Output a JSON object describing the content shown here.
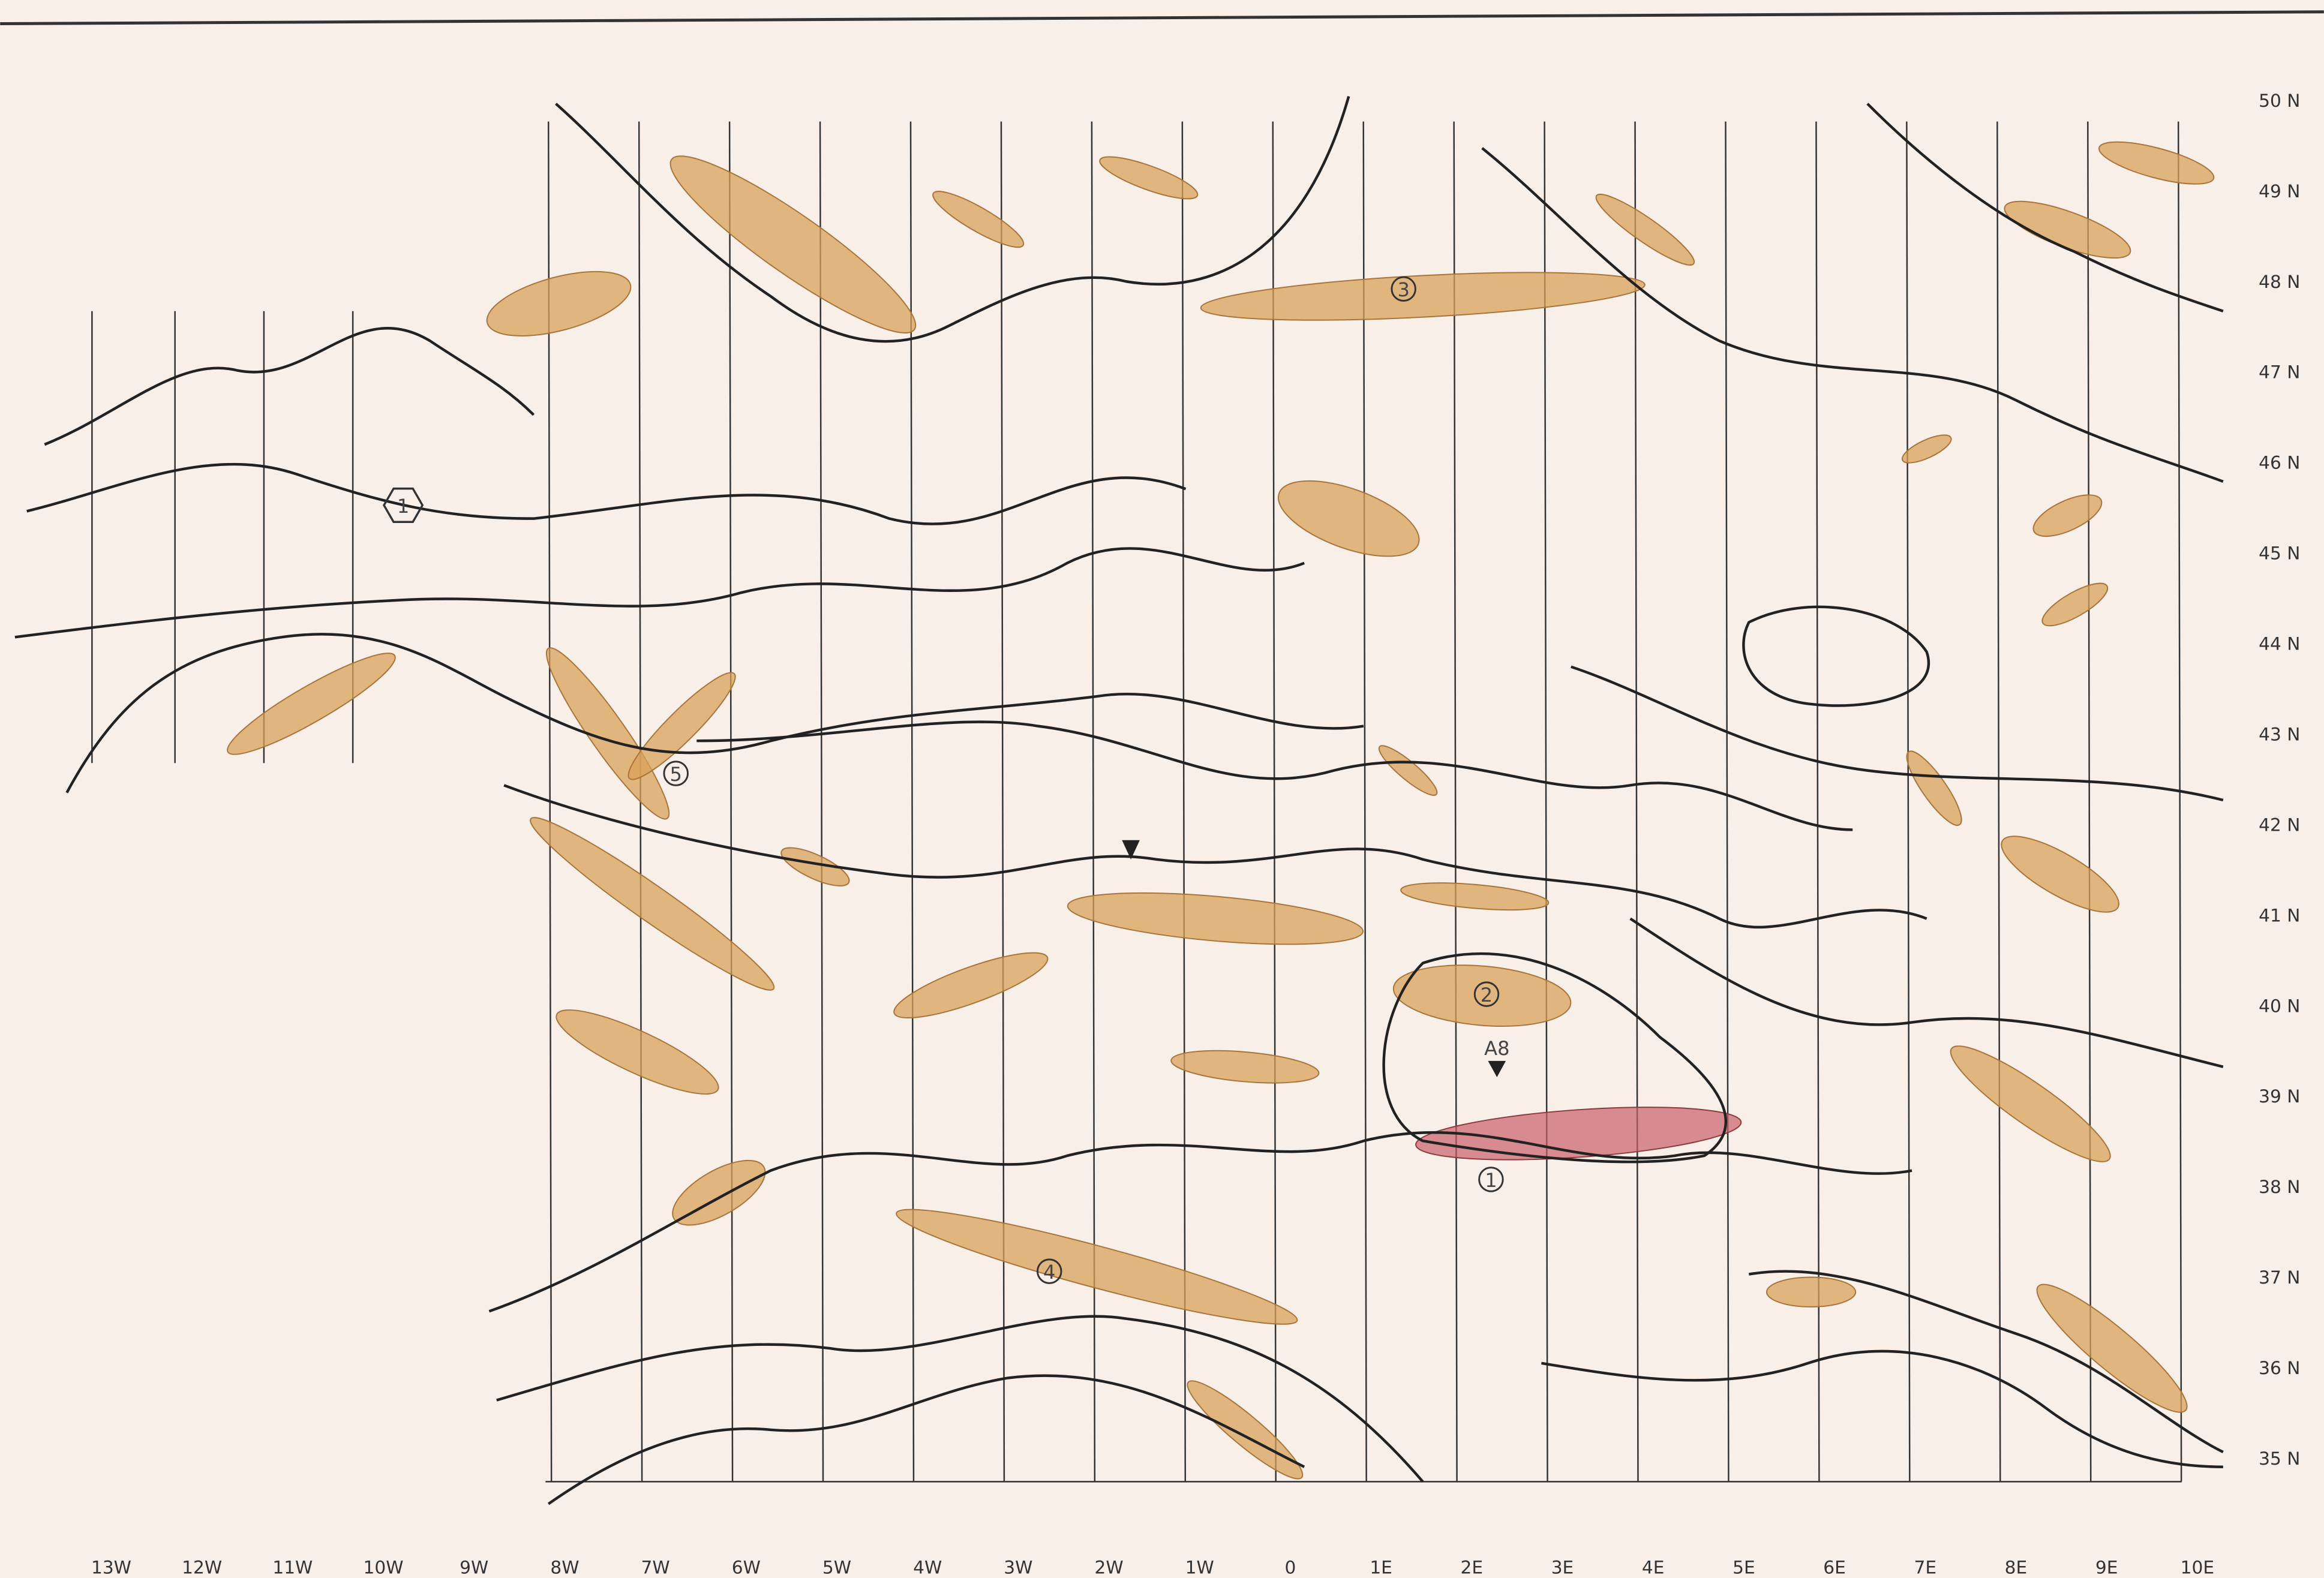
{
  "map": {
    "latitudes": [
      "50 N",
      "49 N",
      "48 N",
      "47 N",
      "46 N",
      "45 N",
      "44 N",
      "43 N",
      "42 N",
      "41 N",
      "40 N",
      "39 N",
      "38 N",
      "37 N",
      "36 N",
      "35 N"
    ],
    "longitudes": [
      "13W",
      "12W",
      "11W",
      "10W",
      "9W",
      "8W",
      "7W",
      "6W",
      "5W",
      "4W",
      "3W",
      "2W",
      "1W",
      "0",
      "1E",
      "2E",
      "3E",
      "4E",
      "5E",
      "6E",
      "7E",
      "8E",
      "9E",
      "10E"
    ],
    "markers": [
      {
        "label": "1"
      },
      {
        "label": "2"
      },
      {
        "label": "3"
      },
      {
        "label": "4"
      },
      {
        "label": "5"
      },
      {
        "label": "1"
      }
    ],
    "annotation": "A8"
  }
}
